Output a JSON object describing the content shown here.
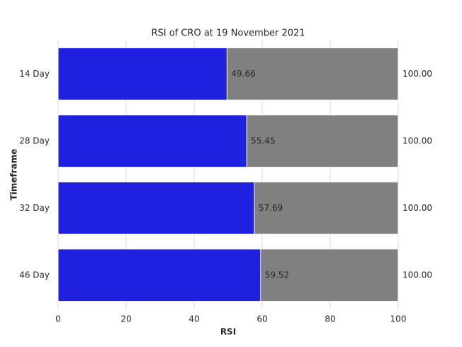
{
  "chart_data": {
    "type": "bar",
    "orientation": "horizontal",
    "title": "RSI of CRO at 19 November 2021",
    "x_label": "RSI",
    "y_label": "Timeframe",
    "categories": [
      "14 Day",
      "28 Day",
      "32 Day",
      "46 Day"
    ],
    "series": [
      {
        "color": "#808080",
        "values": [
          100,
          100,
          100,
          100
        ],
        "value_labels": [
          "100.00",
          "100.00",
          "100.00",
          "100.00"
        ]
      },
      {
        "color": "#2020e0",
        "values": [
          49.66,
          55.45,
          57.69,
          59.52
        ]
      }
    ],
    "xlim": [
      0,
      100
    ],
    "xticks": [
      0,
      20,
      40,
      60,
      80,
      100
    ],
    "grid": true
  }
}
